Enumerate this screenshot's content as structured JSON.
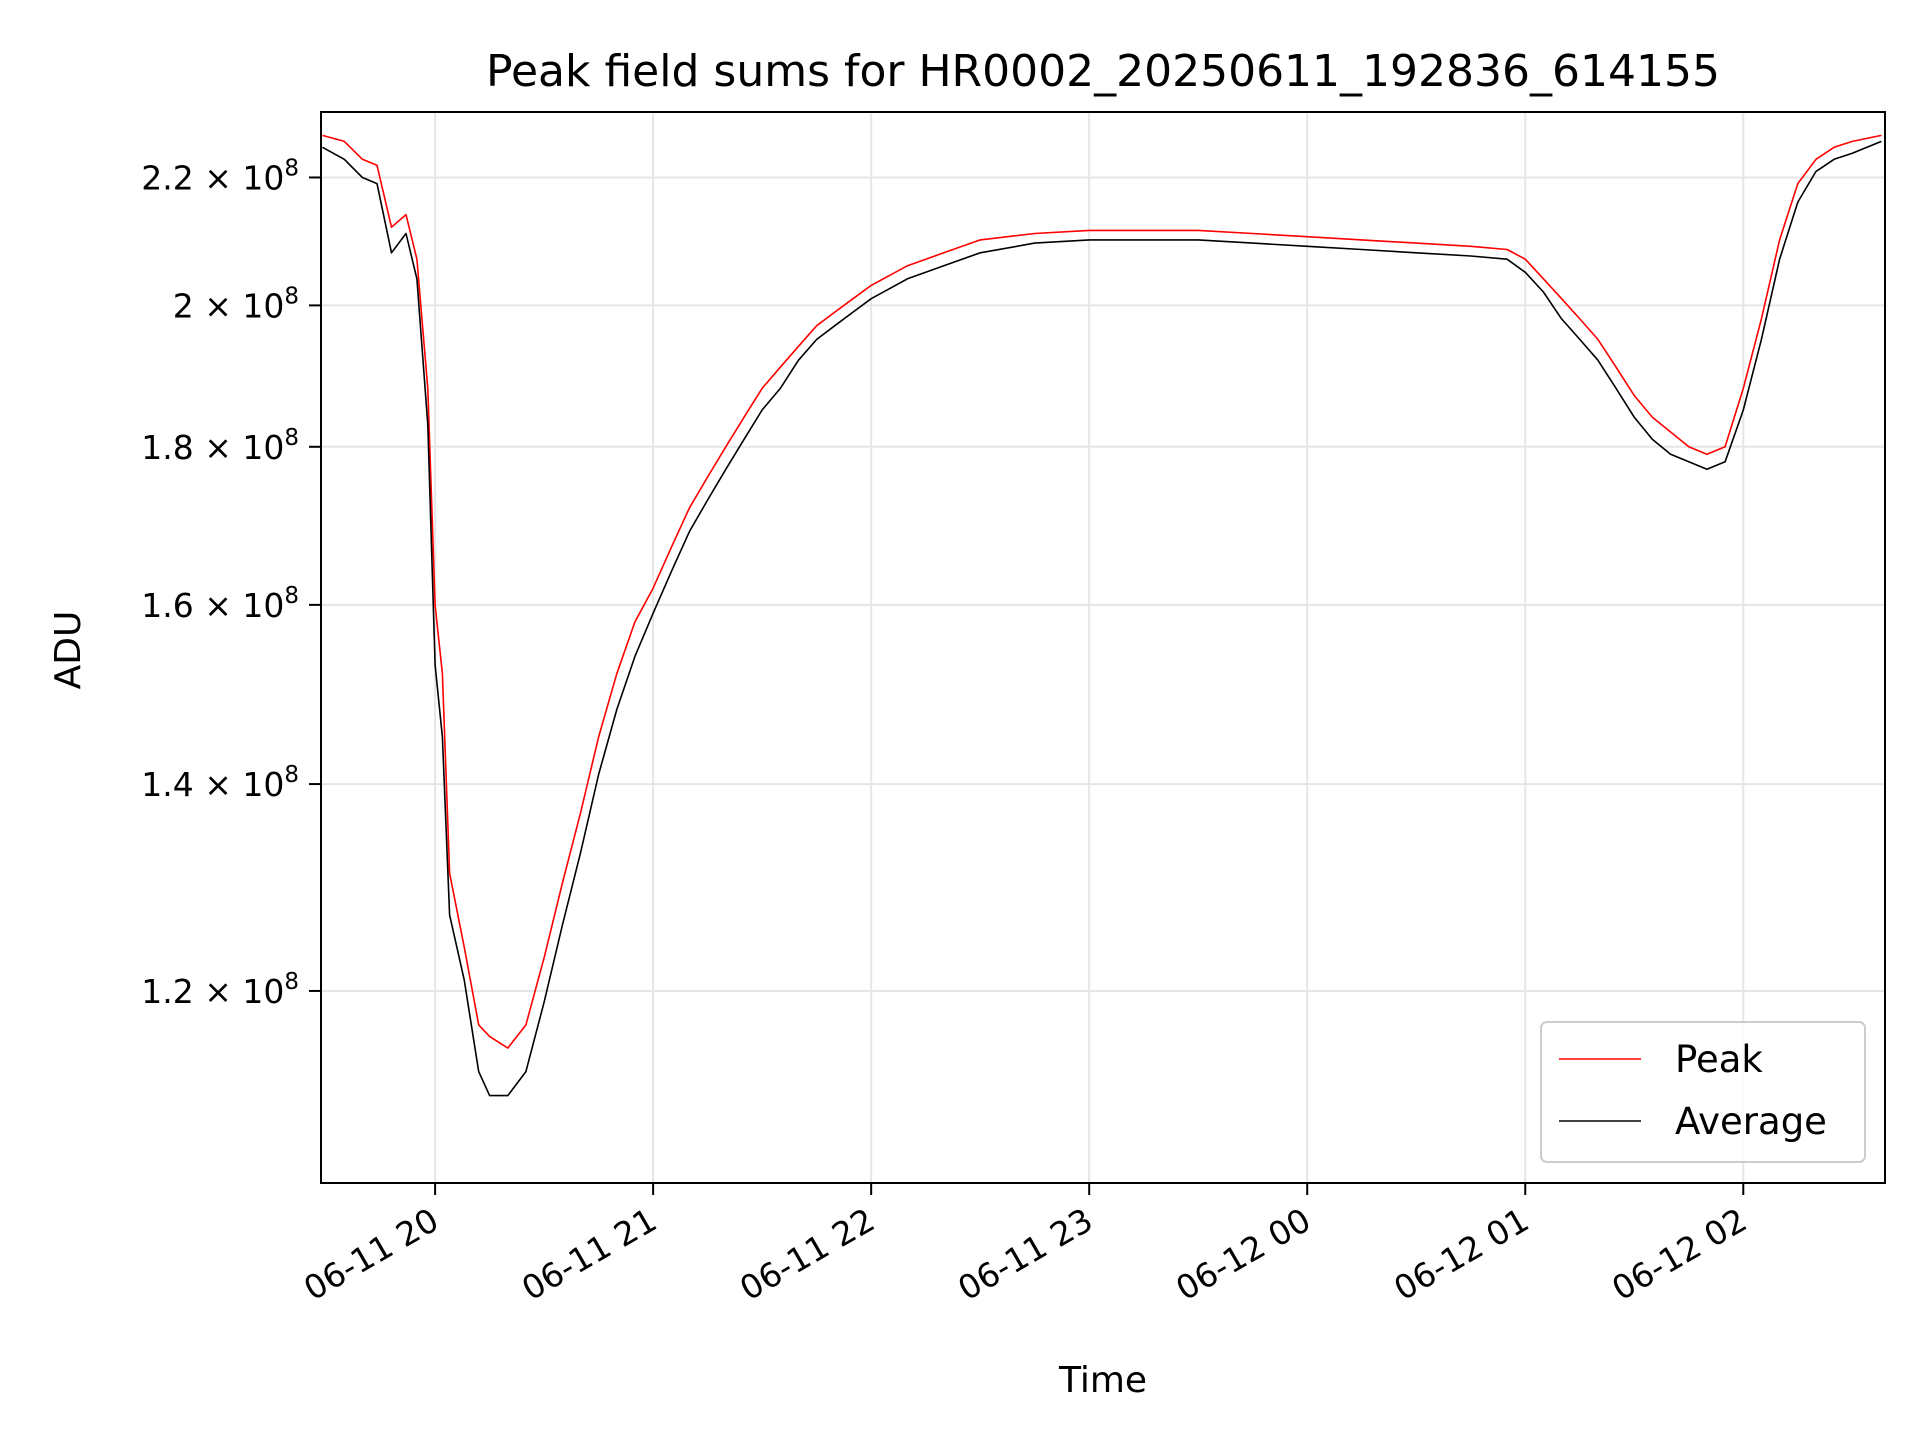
{
  "chart_data": {
    "type": "line",
    "title": "Peak field sums for HR0002_20250611_192836_614155",
    "xlabel": "Time",
    "ylabel": "ADU",
    "yscale": "log",
    "xlim": [
      "2025-06-11 19:28:36",
      "2025-06-12 02:39:00"
    ],
    "ylim": [
      104000000,
      231000000
    ],
    "grid": true,
    "legend_position": "lower-right",
    "x_ticks": [
      "06-11 20",
      "06-11 21",
      "06-11 22",
      "06-11 23",
      "06-12 00",
      "06-12 01",
      "06-12 02"
    ],
    "y_ticks": [
      {
        "value": 120000000,
        "mantissa": "1.2",
        "exp": "8"
      },
      {
        "value": 140000000,
        "mantissa": "1.4",
        "exp": "8"
      },
      {
        "value": 160000000,
        "mantissa": "1.6",
        "exp": "8"
      },
      {
        "value": 180000000,
        "mantissa": "1.8",
        "exp": "8"
      },
      {
        "value": 200000000,
        "mantissa": "2",
        "exp": "8"
      },
      {
        "value": 220000000,
        "mantissa": "2.2",
        "exp": "8"
      }
    ],
    "series": [
      {
        "name": "Peak",
        "color": "#ff0000",
        "points": [
          [
            "2025-06-11 19:29",
            227000000
          ],
          [
            "2025-06-11 19:35",
            226000000
          ],
          [
            "2025-06-11 19:40",
            223000000
          ],
          [
            "2025-06-11 19:44",
            222000000
          ],
          [
            "2025-06-11 19:48",
            212000000
          ],
          [
            "2025-06-11 19:52",
            214000000
          ],
          [
            "2025-06-11 19:55",
            207000000
          ],
          [
            "2025-06-11 19:58",
            188000000
          ],
          [
            "2025-06-11 20:00",
            160000000
          ],
          [
            "2025-06-11 20:02",
            152000000
          ],
          [
            "2025-06-11 20:04",
            131000000
          ],
          [
            "2025-06-11 20:08",
            124000000
          ],
          [
            "2025-06-11 20:12",
            117000000
          ],
          [
            "2025-06-11 20:15",
            116000000
          ],
          [
            "2025-06-11 20:20",
            115000000
          ],
          [
            "2025-06-11 20:25",
            117000000
          ],
          [
            "2025-06-11 20:30",
            123000000
          ],
          [
            "2025-06-11 20:35",
            130000000
          ],
          [
            "2025-06-11 20:40",
            137000000
          ],
          [
            "2025-06-11 20:45",
            145000000
          ],
          [
            "2025-06-11 20:50",
            152000000
          ],
          [
            "2025-06-11 20:55",
            158000000
          ],
          [
            "2025-06-11 21:00",
            162000000
          ],
          [
            "2025-06-11 21:05",
            167000000
          ],
          [
            "2025-06-11 21:10",
            172000000
          ],
          [
            "2025-06-11 21:15",
            176000000
          ],
          [
            "2025-06-11 21:20",
            180000000
          ],
          [
            "2025-06-11 21:25",
            184000000
          ],
          [
            "2025-06-11 21:30",
            188000000
          ],
          [
            "2025-06-11 21:35",
            191000000
          ],
          [
            "2025-06-11 21:40",
            194000000
          ],
          [
            "2025-06-11 21:45",
            197000000
          ],
          [
            "2025-06-11 21:50",
            199000000
          ],
          [
            "2025-06-11 21:55",
            201000000
          ],
          [
            "2025-06-11 22:00",
            203000000
          ],
          [
            "2025-06-11 22:10",
            206000000
          ],
          [
            "2025-06-11 22:20",
            208000000
          ],
          [
            "2025-06-11 22:30",
            210000000
          ],
          [
            "2025-06-11 22:45",
            211000000
          ],
          [
            "2025-06-11 23:00",
            211500000
          ],
          [
            "2025-06-11 23:15",
            211500000
          ],
          [
            "2025-06-11 23:30",
            211500000
          ],
          [
            "2025-06-11 23:45",
            211000000
          ],
          [
            "2025-06-12 00:00",
            210500000
          ],
          [
            "2025-06-12 00:15",
            210000000
          ],
          [
            "2025-06-12 00:30",
            209500000
          ],
          [
            "2025-06-12 00:45",
            209000000
          ],
          [
            "2025-06-12 00:55",
            208500000
          ],
          [
            "2025-06-12 01:00",
            207000000
          ],
          [
            "2025-06-12 01:05",
            204000000
          ],
          [
            "2025-06-12 01:10",
            201000000
          ],
          [
            "2025-06-12 01:15",
            198000000
          ],
          [
            "2025-06-12 01:20",
            195000000
          ],
          [
            "2025-06-12 01:25",
            191000000
          ],
          [
            "2025-06-12 01:30",
            187000000
          ],
          [
            "2025-06-12 01:35",
            184000000
          ],
          [
            "2025-06-12 01:40",
            182000000
          ],
          [
            "2025-06-12 01:45",
            180000000
          ],
          [
            "2025-06-12 01:50",
            179000000
          ],
          [
            "2025-06-12 01:55",
            180000000
          ],
          [
            "2025-06-12 02:00",
            188000000
          ],
          [
            "2025-06-12 02:05",
            198000000
          ],
          [
            "2025-06-12 02:10",
            210000000
          ],
          [
            "2025-06-12 02:15",
            219000000
          ],
          [
            "2025-06-12 02:20",
            223000000
          ],
          [
            "2025-06-12 02:25",
            225000000
          ],
          [
            "2025-06-12 02:30",
            226000000
          ],
          [
            "2025-06-12 02:38",
            227000000
          ]
        ]
      },
      {
        "name": "Average",
        "color": "#000000",
        "points": [
          [
            "2025-06-11 19:29",
            225000000
          ],
          [
            "2025-06-11 19:35",
            223000000
          ],
          [
            "2025-06-11 19:40",
            220000000
          ],
          [
            "2025-06-11 19:44",
            219000000
          ],
          [
            "2025-06-11 19:48",
            208000000
          ],
          [
            "2025-06-11 19:52",
            211000000
          ],
          [
            "2025-06-11 19:55",
            204000000
          ],
          [
            "2025-06-11 19:58",
            183000000
          ],
          [
            "2025-06-11 20:00",
            153000000
          ],
          [
            "2025-06-11 20:02",
            145000000
          ],
          [
            "2025-06-11 20:04",
            127000000
          ],
          [
            "2025-06-11 20:08",
            121000000
          ],
          [
            "2025-06-11 20:12",
            113000000
          ],
          [
            "2025-06-11 20:15",
            111000000
          ],
          [
            "2025-06-11 20:20",
            111000000
          ],
          [
            "2025-06-11 20:25",
            113000000
          ],
          [
            "2025-06-11 20:30",
            119000000
          ],
          [
            "2025-06-11 20:35",
            126000000
          ],
          [
            "2025-06-11 20:40",
            133000000
          ],
          [
            "2025-06-11 20:45",
            141000000
          ],
          [
            "2025-06-11 20:50",
            148000000
          ],
          [
            "2025-06-11 20:55",
            154000000
          ],
          [
            "2025-06-11 21:00",
            159000000
          ],
          [
            "2025-06-11 21:05",
            164000000
          ],
          [
            "2025-06-11 21:10",
            169000000
          ],
          [
            "2025-06-11 21:15",
            173000000
          ],
          [
            "2025-06-11 21:20",
            177000000
          ],
          [
            "2025-06-11 21:25",
            181000000
          ],
          [
            "2025-06-11 21:30",
            185000000
          ],
          [
            "2025-06-11 21:35",
            188000000
          ],
          [
            "2025-06-11 21:40",
            192000000
          ],
          [
            "2025-06-11 21:45",
            195000000
          ],
          [
            "2025-06-11 21:50",
            197000000
          ],
          [
            "2025-06-11 21:55",
            199000000
          ],
          [
            "2025-06-11 22:00",
            201000000
          ],
          [
            "2025-06-11 22:10",
            204000000
          ],
          [
            "2025-06-11 22:20",
            206000000
          ],
          [
            "2025-06-11 22:30",
            208000000
          ],
          [
            "2025-06-11 22:45",
            209500000
          ],
          [
            "2025-06-11 23:00",
            210000000
          ],
          [
            "2025-06-11 23:15",
            210000000
          ],
          [
            "2025-06-11 23:30",
            210000000
          ],
          [
            "2025-06-11 23:45",
            209500000
          ],
          [
            "2025-06-12 00:00",
            209000000
          ],
          [
            "2025-06-12 00:15",
            208500000
          ],
          [
            "2025-06-12 00:30",
            208000000
          ],
          [
            "2025-06-12 00:45",
            207500000
          ],
          [
            "2025-06-12 00:55",
            207000000
          ],
          [
            "2025-06-12 01:00",
            205000000
          ],
          [
            "2025-06-12 01:05",
            202000000
          ],
          [
            "2025-06-12 01:10",
            198000000
          ],
          [
            "2025-06-12 01:15",
            195000000
          ],
          [
            "2025-06-12 01:20",
            192000000
          ],
          [
            "2025-06-12 01:25",
            188000000
          ],
          [
            "2025-06-12 01:30",
            184000000
          ],
          [
            "2025-06-12 01:35",
            181000000
          ],
          [
            "2025-06-12 01:40",
            179000000
          ],
          [
            "2025-06-12 01:45",
            178000000
          ],
          [
            "2025-06-12 01:50",
            177000000
          ],
          [
            "2025-06-12 01:55",
            178000000
          ],
          [
            "2025-06-12 02:00",
            185000000
          ],
          [
            "2025-06-12 02:05",
            195000000
          ],
          [
            "2025-06-12 02:10",
            207000000
          ],
          [
            "2025-06-12 02:15",
            216000000
          ],
          [
            "2025-06-12 02:20",
            221000000
          ],
          [
            "2025-06-12 02:25",
            223000000
          ],
          [
            "2025-06-12 02:30",
            224000000
          ],
          [
            "2025-06-12 02:38",
            226000000
          ]
        ]
      }
    ]
  }
}
